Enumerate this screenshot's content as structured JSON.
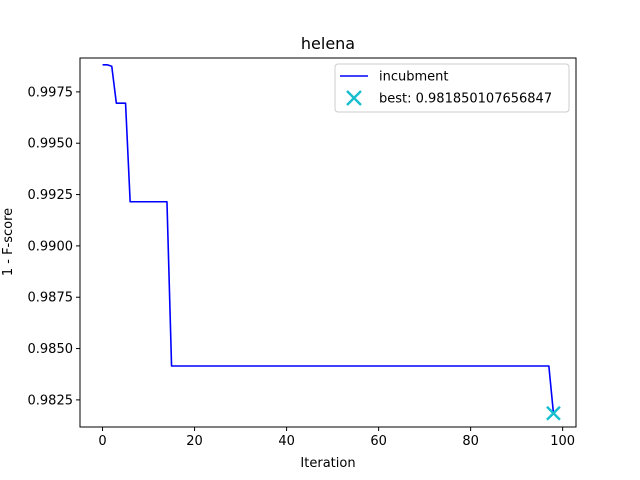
{
  "chart_data": {
    "type": "line",
    "title": "helena",
    "xlabel": "Iteration",
    "ylabel": "1 - F-score",
    "xlim": [
      -4.9,
      102.9
    ],
    "ylim": [
      0.98118,
      0.99915
    ],
    "xticks": [
      0,
      20,
      40,
      60,
      80,
      100
    ],
    "xtick_labels": [
      "0",
      "20",
      "40",
      "60",
      "80",
      "100"
    ],
    "yticks": [
      0.9825,
      0.985,
      0.9875,
      0.99,
      0.9925,
      0.995,
      0.9975
    ],
    "ytick_labels": [
      "0.9825",
      "0.9850",
      "0.9875",
      "0.9900",
      "0.9925",
      "0.9950",
      "0.9975"
    ],
    "grid": false,
    "legend_position": "top-right",
    "series": [
      {
        "name": "incubment",
        "color": "#0000ff",
        "x": [
          0,
          1,
          2,
          3,
          4,
          5,
          6,
          7,
          8,
          9,
          10,
          11,
          12,
          13,
          14,
          15,
          30,
          50,
          70,
          90,
          97,
          98
        ],
        "y": [
          0.99882,
          0.99882,
          0.99875,
          0.99695,
          0.99695,
          0.99695,
          0.99215,
          0.99215,
          0.99215,
          0.99215,
          0.99215,
          0.99215,
          0.99215,
          0.99215,
          0.99215,
          0.98415,
          0.98415,
          0.98415,
          0.98415,
          0.98415,
          0.98415,
          0.98185
        ]
      }
    ],
    "best_point": {
      "label": "best: 0.981850107656847",
      "x": 98,
      "y": 0.981850107656847,
      "color": "#17becf",
      "marker": "x"
    }
  }
}
